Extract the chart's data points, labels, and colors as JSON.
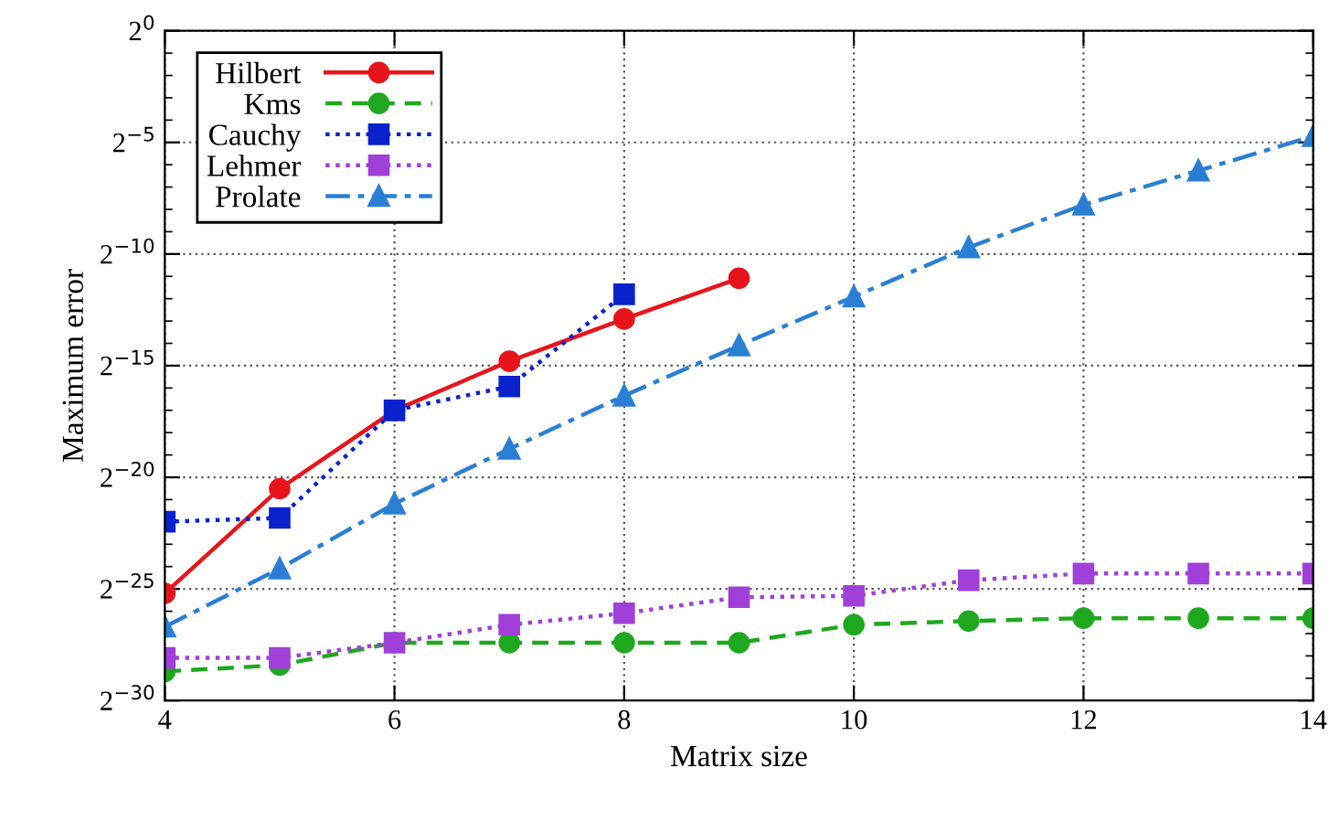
{
  "chart_data": {
    "type": "line",
    "xlabel": "Matrix size",
    "ylabel": "Maximum error",
    "x": [
      4,
      5,
      6,
      7,
      8,
      9,
      10,
      11,
      12,
      13,
      14
    ],
    "series": [
      {
        "name": "Hilbert",
        "color": "#e8141b",
        "marker": "circle",
        "line_style": "solid",
        "values": [
          2.6e-08,
          6.7e-07,
          7.6e-06,
          3.5e-05,
          0.00013,
          0.00046,
          null,
          null,
          null,
          null,
          null
        ]
      },
      {
        "name": "Kms",
        "color": "#1fa81f",
        "marker": "circle",
        "line_style": "dashed",
        "values": [
          2.3e-09,
          2.8e-09,
          5.6e-09,
          5.6e-09,
          5.6e-09,
          5.6e-09,
          9.8e-09,
          1.1e-08,
          1.2e-08,
          1.2e-08,
          1.2e-08
        ]
      },
      {
        "name": "Cauchy",
        "color": "#0a22cc",
        "marker": "square",
        "line_style": "dotted",
        "values": [
          2.4e-07,
          2.7e-07,
          7.6e-06,
          1.6e-05,
          0.00028,
          null,
          null,
          null,
          null,
          null,
          null
        ]
      },
      {
        "name": "Lehmer",
        "color": "#a040d8",
        "marker": "square",
        "line_style": "dotted",
        "values": [
          3.5e-09,
          3.5e-09,
          5.6e-09,
          9.8e-09,
          1.4e-08,
          2.3e-08,
          2.4e-08,
          3.9e-08,
          4.8e-08,
          4.8e-08,
          4.8e-08
        ]
      },
      {
        "name": "Prolate",
        "color": "#2a7fd4",
        "marker": "triangle",
        "line_style": "dashdot",
        "values": [
          9.2e-09,
          5.6e-08,
          4.2e-07,
          2.3e-06,
          1.2e-05,
          5.7e-05,
          0.00026,
          0.0012,
          0.0045,
          0.013,
          0.038
        ]
      }
    ],
    "log": "y",
    "xlim": [
      4,
      14
    ],
    "xticks": [
      4,
      6,
      8,
      10,
      12,
      14
    ],
    "ylim": [
      9.313225746154785e-10,
      1
    ],
    "yticks": [
      {
        "value": 9.313225746154785e-10,
        "label": "2$^{−30}$"
      },
      {
        "value": 2.9802322387695312e-08,
        "label": "2$^{−25}$"
      },
      {
        "value": 9.5367431640625e-07,
        "label": "2$^{−20}$"
      },
      {
        "value": 3.0517578125e-05,
        "label": "2$^{−15}$"
      },
      {
        "value": 0.0009765625,
        "label": "2$^{−10}$"
      },
      {
        "value": 0.03125,
        "label": "2$^{−5}$"
      },
      {
        "value": 1,
        "label": "2$^{0}$"
      }
    ],
    "grid": true,
    "legend": "top left"
  }
}
